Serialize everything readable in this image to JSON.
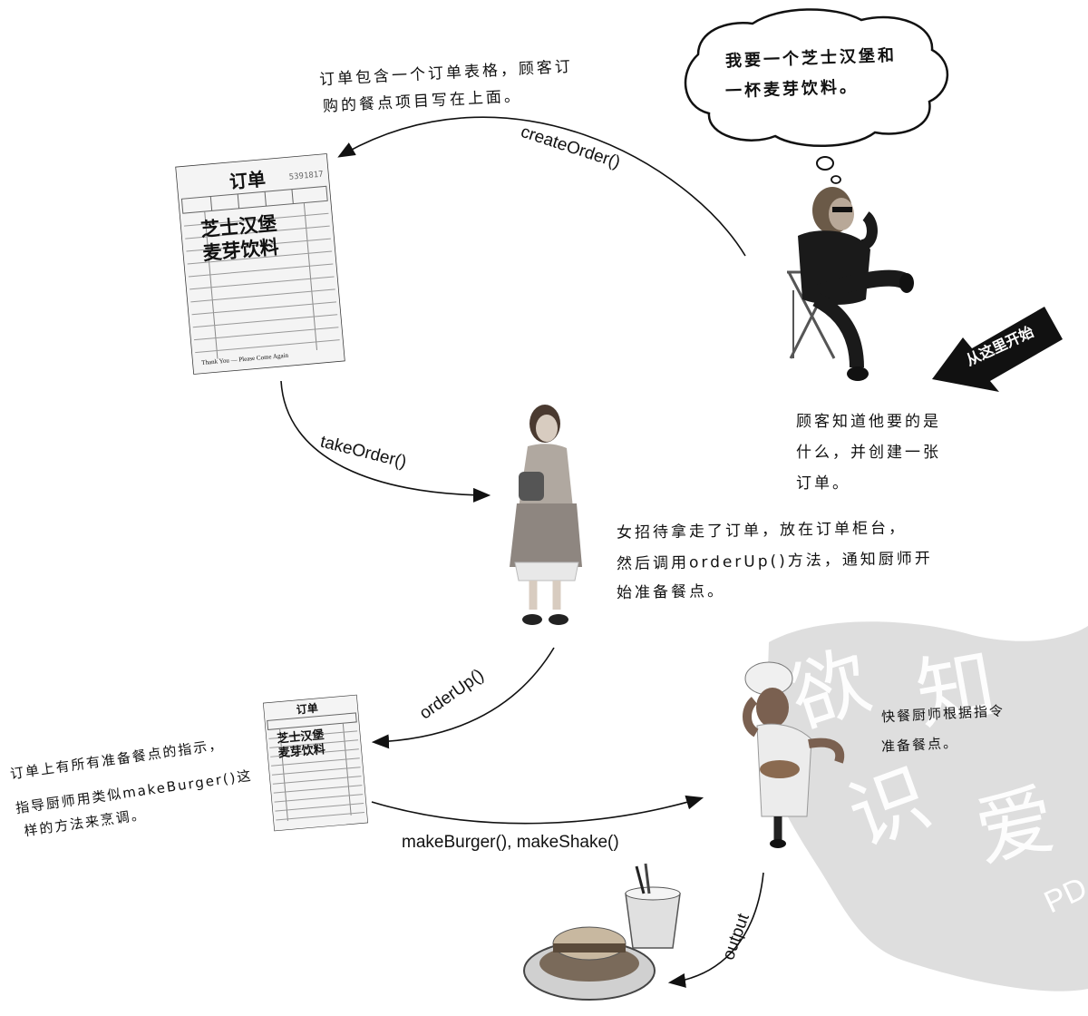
{
  "speech_bubble": {
    "line1": "我要一个芝士汉堡和",
    "line2": "一杯麦芽饮料。"
  },
  "start_label": "从这里开始",
  "notes": {
    "order_form": {
      "line1": "订单包含一个订单表格，顾客订",
      "line2": "购的餐点项目写在上面。"
    },
    "customer": {
      "line1": "顾客知道他要的是",
      "line2": "什么，并创建一张",
      "line3": "订单。"
    },
    "waitress": {
      "line1": "女招待拿走了订单，放在订单柜台，",
      "line2": "然后调用orderUp()方法，通知厨师开",
      "line3": "始准备餐点。"
    },
    "order_instructions": {
      "line1": "订单上有所有准备餐点的指示，",
      "line2": "指导厨师用类似makeBurger()这",
      "line3": "样的方法来烹调。"
    },
    "cook": {
      "line1": "快餐厨师根据指令",
      "line2": "准备餐点。"
    }
  },
  "methods": {
    "create_order": "createOrder()",
    "take_order": "takeOrder()",
    "order_up": "orderUp()",
    "make": "makeBurger(), makeShake()",
    "output": "output"
  },
  "ticket_large": {
    "title": "订单",
    "number": "5391817",
    "items": [
      "芝士汉堡",
      "麦芽饮料"
    ],
    "footer": "Thank You — Please Come Again"
  },
  "ticket_small": {
    "title": "订单",
    "items": [
      "芝士汉堡",
      "麦芽饮料"
    ]
  },
  "watermark": {
    "chars": [
      "欲",
      "知",
      "识",
      "爱"
    ],
    "pd": "PD"
  }
}
